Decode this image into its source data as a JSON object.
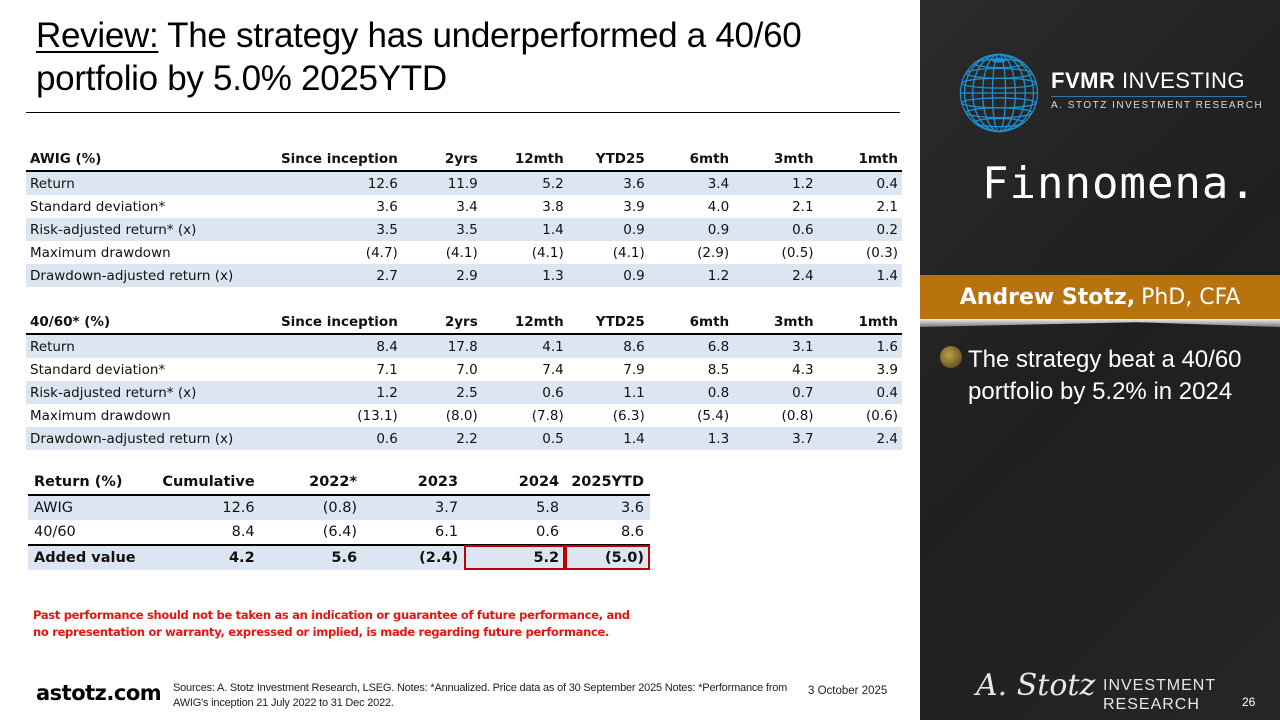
{
  "title": {
    "prefix": "Review:",
    "text": " The strategy has underperformed a 40/60 portfolio by 5.0% 2025YTD"
  },
  "awig_table": {
    "headers": [
      "AWIG (%)",
      "Since inception",
      "2yrs",
      "12mth",
      "YTD25",
      "6mth",
      "3mth",
      "1mth"
    ],
    "rows": [
      {
        "label": "Return",
        "values": [
          "12.6",
          "11.9",
          "5.2",
          "3.6",
          "3.4",
          "1.2",
          "0.4"
        ]
      },
      {
        "label": "Standard deviation*",
        "values": [
          "3.6",
          "3.4",
          "3.8",
          "3.9",
          "4.0",
          "2.1",
          "2.1"
        ]
      },
      {
        "label": "Risk-adjusted return* (x)",
        "values": [
          "3.5",
          "3.5",
          "1.4",
          "0.9",
          "0.9",
          "0.6",
          "0.2"
        ]
      },
      {
        "label": "Maximum drawdown",
        "values": [
          "(4.7)",
          "(4.1)",
          "(4.1)",
          "(4.1)",
          "(2.9)",
          "(0.5)",
          "(0.3)"
        ]
      },
      {
        "label": "Drawdown-adjusted return (x)",
        "values": [
          "2.7",
          "2.9",
          "1.3",
          "0.9",
          "1.2",
          "2.4",
          "1.4"
        ]
      }
    ]
  },
  "benchmark_table": {
    "headers": [
      "40/60* (%)",
      "Since inception",
      "2yrs",
      "12mth",
      "YTD25",
      "6mth",
      "3mth",
      "1mth"
    ],
    "rows": [
      {
        "label": "Return",
        "values": [
          "8.4",
          "17.8",
          "4.1",
          "8.6",
          "6.8",
          "3.1",
          "1.6"
        ]
      },
      {
        "label": "Standard deviation*",
        "values": [
          "7.1",
          "7.0",
          "7.4",
          "7.9",
          "8.5",
          "4.3",
          "3.9"
        ]
      },
      {
        "label": "Risk-adjusted return* (x)",
        "values": [
          "1.2",
          "2.5",
          "0.6",
          "1.1",
          "0.8",
          "0.7",
          "0.4"
        ]
      },
      {
        "label": "Maximum drawdown",
        "values": [
          "(13.1)",
          "(8.0)",
          "(7.8)",
          "(6.3)",
          "(5.4)",
          "(0.8)",
          "(0.6)"
        ]
      },
      {
        "label": "Drawdown-adjusted return (x)",
        "values": [
          "0.6",
          "2.2",
          "0.5",
          "1.4",
          "1.3",
          "3.7",
          "2.4"
        ]
      }
    ]
  },
  "returns_table": {
    "headers": [
      "Return (%)",
      "Cumulative",
      "2022*",
      "2023",
      "2024",
      "2025YTD"
    ],
    "rows": [
      {
        "label": "AWIG",
        "values": [
          "12.6",
          "(0.8)",
          "3.7",
          "5.8",
          "3.6"
        ]
      },
      {
        "label": "40/60",
        "values": [
          "8.4",
          "(6.4)",
          "6.1",
          "0.6",
          "8.6"
        ]
      },
      {
        "label": "Added value",
        "values": [
          "4.2",
          "5.6",
          "(2.4)",
          "5.2",
          "(5.0)"
        ]
      }
    ],
    "highlight_color": "#c00000"
  },
  "disclaimer": "Past performance should not be taken as an indication or guarantee of future performance, and no representation or warranty, expressed or implied, is made regarding future performance.",
  "footer": {
    "site": "astotz.com",
    "sources": "Sources: A. Stotz Investment Research, LSEG. Notes: *Annualized. Price data as of 30 September 2025 Notes: *Performance from AWIG's inception 21 July 2022 to 31 Dec 2022.",
    "date": "3 October 2025",
    "page_number": "26"
  },
  "sidebar": {
    "brand_bold": "FVMR",
    "brand_rest": " INVESTING",
    "brand_sub": "A. STOTZ INVESTMENT RESEARCH",
    "partner": "Finnomena.",
    "presenter_name": "Andrew Stotz,",
    "presenter_credentials": "PhD, CFA",
    "bullet": "The strategy beat a 40/60 portfolio by 5.2% in 2024",
    "signature": "A. Stotz",
    "footer_brand": "INVESTMENT RESEARCH",
    "accent_color": "#b8730f",
    "globe_color": "#1e8fd0"
  },
  "colors": {
    "row_shade": "#dce6f2",
    "disclaimer_red": "#e8140f"
  }
}
